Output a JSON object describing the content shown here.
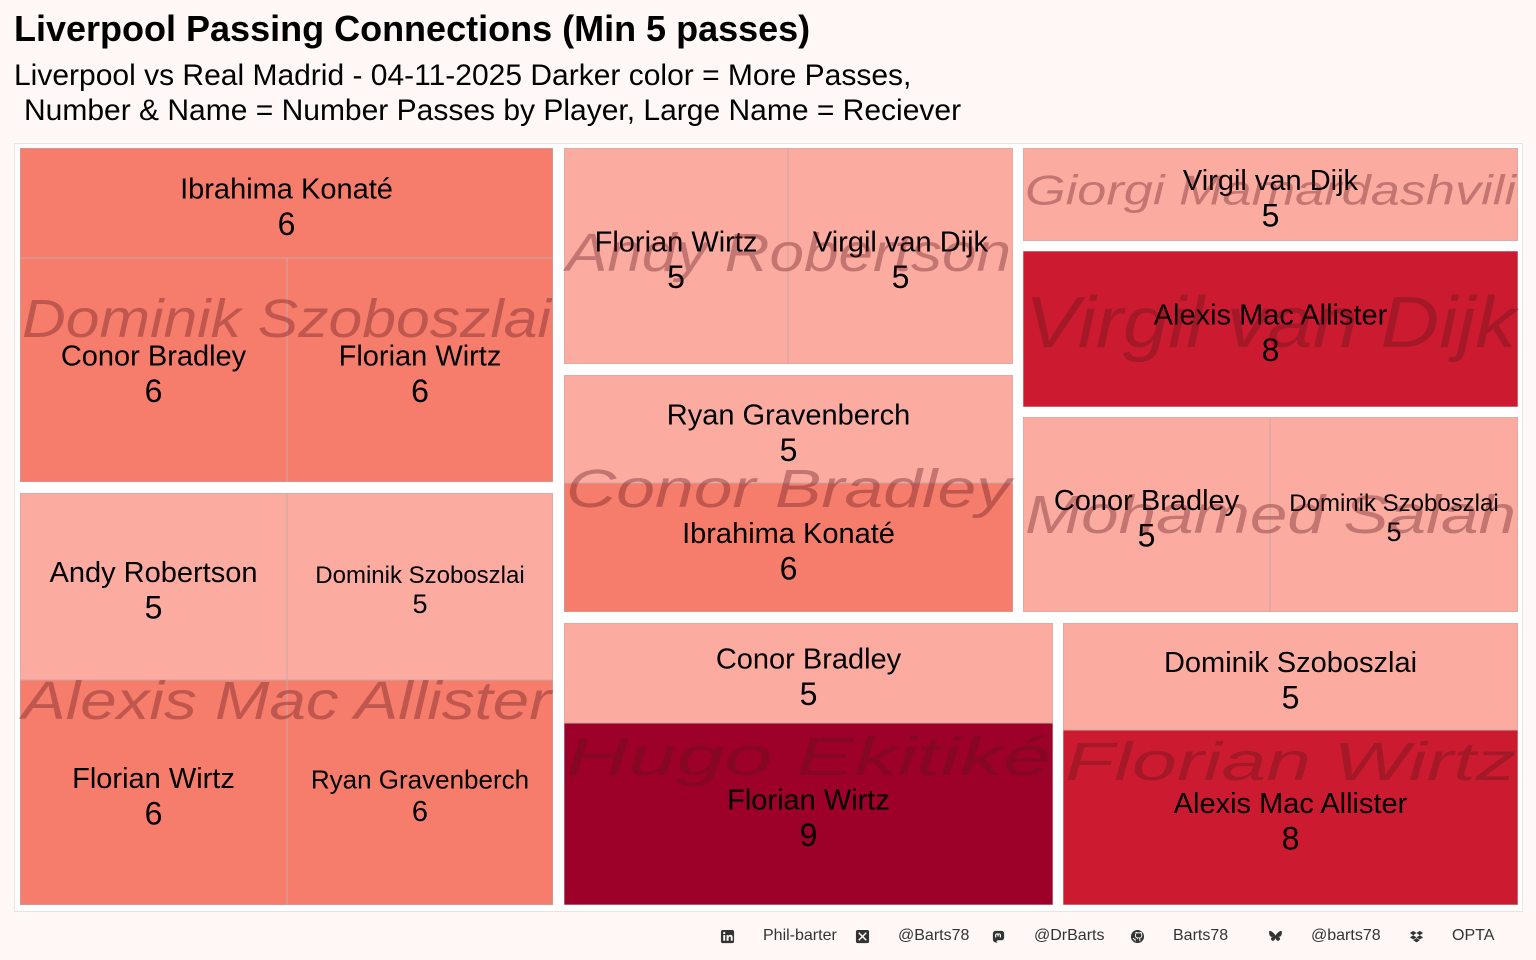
{
  "header": {
    "title": "Liverpool Passing Connections (Min 5 passes)",
    "subtitle_line1": "Liverpool vs Real Madrid - 04-11-2025 Darker color = More Passes,",
    "subtitle_line2": "Number & Name = Number Passes by Player, Large Name =  Reciever"
  },
  "colors": {
    "passes_5": "#fcaba0",
    "passes_6": "#f67c6b",
    "passes_8": "#cc1b31",
    "passes_9": "#9d0029",
    "receiver_label": "rgba(90,20,25,0.35)",
    "border": "#c8a8a4"
  },
  "chart_data": {
    "type": "treemap",
    "title": "Liverpool Passing Connections (Min 5 passes)",
    "groups": [
      {
        "receiver": "Dominik Szoboszlai",
        "passers": [
          {
            "name": "Ibrahima Konaté",
            "value": 6
          },
          {
            "name": "Conor Bradley",
            "value": 6
          },
          {
            "name": "Florian Wirtz",
            "value": 6
          }
        ]
      },
      {
        "receiver": "Alexis Mac Allister",
        "passers": [
          {
            "name": "Andy Robertson",
            "value": 5
          },
          {
            "name": "Dominik Szoboszlai",
            "value": 5
          },
          {
            "name": "Florian Wirtz",
            "value": 6
          },
          {
            "name": "Ryan Gravenberch",
            "value": 6
          }
        ]
      },
      {
        "receiver": "Andy Robertson",
        "passers": [
          {
            "name": "Florian Wirtz",
            "value": 5
          },
          {
            "name": "Virgil van Dijk",
            "value": 5
          }
        ]
      },
      {
        "receiver": "Conor Bradley",
        "passers": [
          {
            "name": "Ryan Gravenberch",
            "value": 5
          },
          {
            "name": "Ibrahima Konaté",
            "value": 6
          }
        ]
      },
      {
        "receiver": "Hugo Ekitiké",
        "passers": [
          {
            "name": "Conor Bradley",
            "value": 5
          },
          {
            "name": "Florian Wirtz",
            "value": 9
          }
        ]
      },
      {
        "receiver": "Giorgi Mamardashvili",
        "passers": [
          {
            "name": "Virgil van Dijk",
            "value": 5
          }
        ]
      },
      {
        "receiver": "Virgil van Dijk",
        "passers": [
          {
            "name": "Alexis Mac Allister",
            "value": 8
          }
        ]
      },
      {
        "receiver": "Mohamed Salah",
        "passers": [
          {
            "name": "Conor Bradley",
            "value": 5
          },
          {
            "name": "Dominik Szoboszlai",
            "value": 5
          }
        ]
      },
      {
        "receiver": "Florian Wirtz",
        "passers": [
          {
            "name": "Dominik Szoboszlai",
            "value": 5
          },
          {
            "name": "Alexis Mac Allister",
            "value": 8
          }
        ]
      }
    ]
  },
  "footer": [
    {
      "icon": "linkedin-icon",
      "text": "Phil-barter"
    },
    {
      "icon": "x-twitter-icon",
      "text": "@Barts78"
    },
    {
      "icon": "mastodon-icon",
      "text": "@DrBarts"
    },
    {
      "icon": "github-icon",
      "text": "Barts78"
    },
    {
      "icon": "bluesky-icon",
      "text": "@barts78"
    },
    {
      "icon": "dropbox-icon",
      "text": "OPTA"
    }
  ]
}
